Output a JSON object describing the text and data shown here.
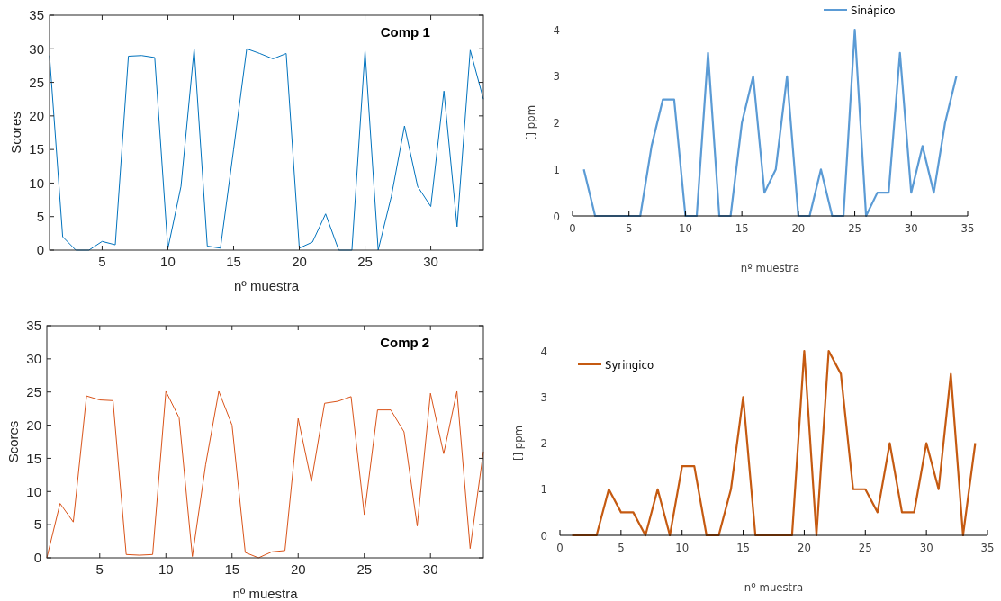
{
  "chart_data": [
    {
      "type": "line",
      "title": "Comp 1",
      "xlabel": "nº muestra",
      "ylabel": "Scores",
      "x": [
        1,
        2,
        3,
        4,
        5,
        6,
        7,
        8,
        9,
        10,
        11,
        12,
        13,
        14,
        15,
        16,
        17,
        18,
        19,
        20,
        21,
        22,
        23,
        24,
        25,
        26,
        27,
        28,
        29,
        30,
        31,
        32,
        33,
        34
      ],
      "xlim": [
        1,
        34
      ],
      "xticks": [
        5,
        10,
        15,
        20,
        25,
        30
      ],
      "ylim": [
        0,
        35
      ],
      "yticks": [
        0,
        5,
        10,
        15,
        20,
        25,
        30,
        35
      ],
      "grid": false,
      "legend": false,
      "series": [
        {
          "color": "#0072bd",
          "values": [
            29,
            2,
            0,
            0,
            1.3,
            0.8,
            28.9,
            29,
            28.7,
            0.2,
            9.5,
            30,
            0.6,
            0.3,
            15,
            30,
            29.3,
            28.5,
            29.3,
            0.3,
            1.2,
            5.4,
            0,
            0,
            29.7,
            0,
            8,
            18.5,
            9.5,
            6.5,
            23.7,
            3.5,
            29.8,
            22.5
          ]
        }
      ]
    },
    {
      "type": "line",
      "xlabel": "nº muestra",
      "ylabel": "[] ppm",
      "x": [
        1,
        2,
        3,
        4,
        5,
        6,
        7,
        8,
        9,
        10,
        11,
        12,
        13,
        14,
        15,
        16,
        17,
        18,
        19,
        20,
        21,
        22,
        23,
        24,
        25,
        26,
        27,
        28,
        29,
        30,
        31,
        32,
        33,
        34
      ],
      "xlim": [
        0,
        35
      ],
      "xticks": [
        0,
        5,
        10,
        15,
        20,
        25,
        30,
        35
      ],
      "ylim": [
        0,
        4
      ],
      "yticks": [
        0,
        1,
        2,
        3,
        4
      ],
      "grid": false,
      "legend": "top right",
      "series": [
        {
          "name": "Sinápico",
          "color": "#5b9bd5",
          "values": [
            1,
            0,
            0,
            0,
            0,
            0,
            1.5,
            2.5,
            2.5,
            0,
            0,
            3.5,
            0,
            0,
            2,
            3,
            0.5,
            1,
            3,
            0,
            0,
            1,
            0,
            0,
            4,
            0,
            0.5,
            0.5,
            3.5,
            0.5,
            1.5,
            0.5,
            2,
            3
          ]
        }
      ]
    },
    {
      "type": "line",
      "title": "Comp 2",
      "xlabel": "nº muestra",
      "ylabel": "Scores",
      "x": [
        1,
        2,
        3,
        4,
        5,
        6,
        7,
        8,
        9,
        10,
        11,
        12,
        13,
        14,
        15,
        16,
        17,
        18,
        19,
        20,
        21,
        22,
        23,
        24,
        25,
        26,
        27,
        28,
        29,
        30,
        31,
        32,
        33,
        34
      ],
      "xlim": [
        1,
        34
      ],
      "xticks": [
        5,
        10,
        15,
        20,
        25,
        30
      ],
      "ylim": [
        0,
        35
      ],
      "yticks": [
        0,
        5,
        10,
        15,
        20,
        25,
        30,
        35
      ],
      "grid": false,
      "legend": false,
      "series": [
        {
          "color": "#d95319",
          "values": [
            0,
            8.2,
            5.4,
            24.4,
            23.8,
            23.7,
            0.5,
            0.4,
            0.5,
            25.1,
            21.1,
            0.2,
            14,
            25.1,
            20,
            0.8,
            0,
            0.9,
            1.1,
            21,
            11.5,
            23.3,
            23.6,
            24.3,
            6.5,
            22.3,
            22.3,
            19,
            4.8,
            24.8,
            15.7,
            25.1,
            1.4,
            16
          ]
        }
      ]
    },
    {
      "type": "line",
      "xlabel": "nº muestra",
      "ylabel": "[] ppm",
      "x": [
        1,
        2,
        3,
        4,
        5,
        6,
        7,
        8,
        9,
        10,
        11,
        12,
        13,
        14,
        15,
        16,
        17,
        18,
        19,
        20,
        21,
        22,
        23,
        24,
        25,
        26,
        27,
        28,
        29,
        30,
        31,
        32,
        33,
        34
      ],
      "xlim": [
        0,
        35
      ],
      "xticks": [
        0,
        5,
        10,
        15,
        20,
        25,
        30,
        35
      ],
      "ylim": [
        0,
        4
      ],
      "yticks": [
        0,
        1,
        2,
        3,
        4
      ],
      "grid": false,
      "legend": "top left",
      "series": [
        {
          "name": "Syringico",
          "color": "#c55a11",
          "values": [
            0,
            0,
            0,
            1,
            0.5,
            0.5,
            0,
            1,
            0,
            1.5,
            1.5,
            0,
            0,
            1,
            3,
            0,
            0,
            0,
            0,
            4,
            0,
            4,
            3.5,
            1,
            1,
            0.5,
            2,
            0.5,
            0.5,
            2,
            1,
            3.5,
            0,
            2
          ]
        }
      ]
    }
  ]
}
